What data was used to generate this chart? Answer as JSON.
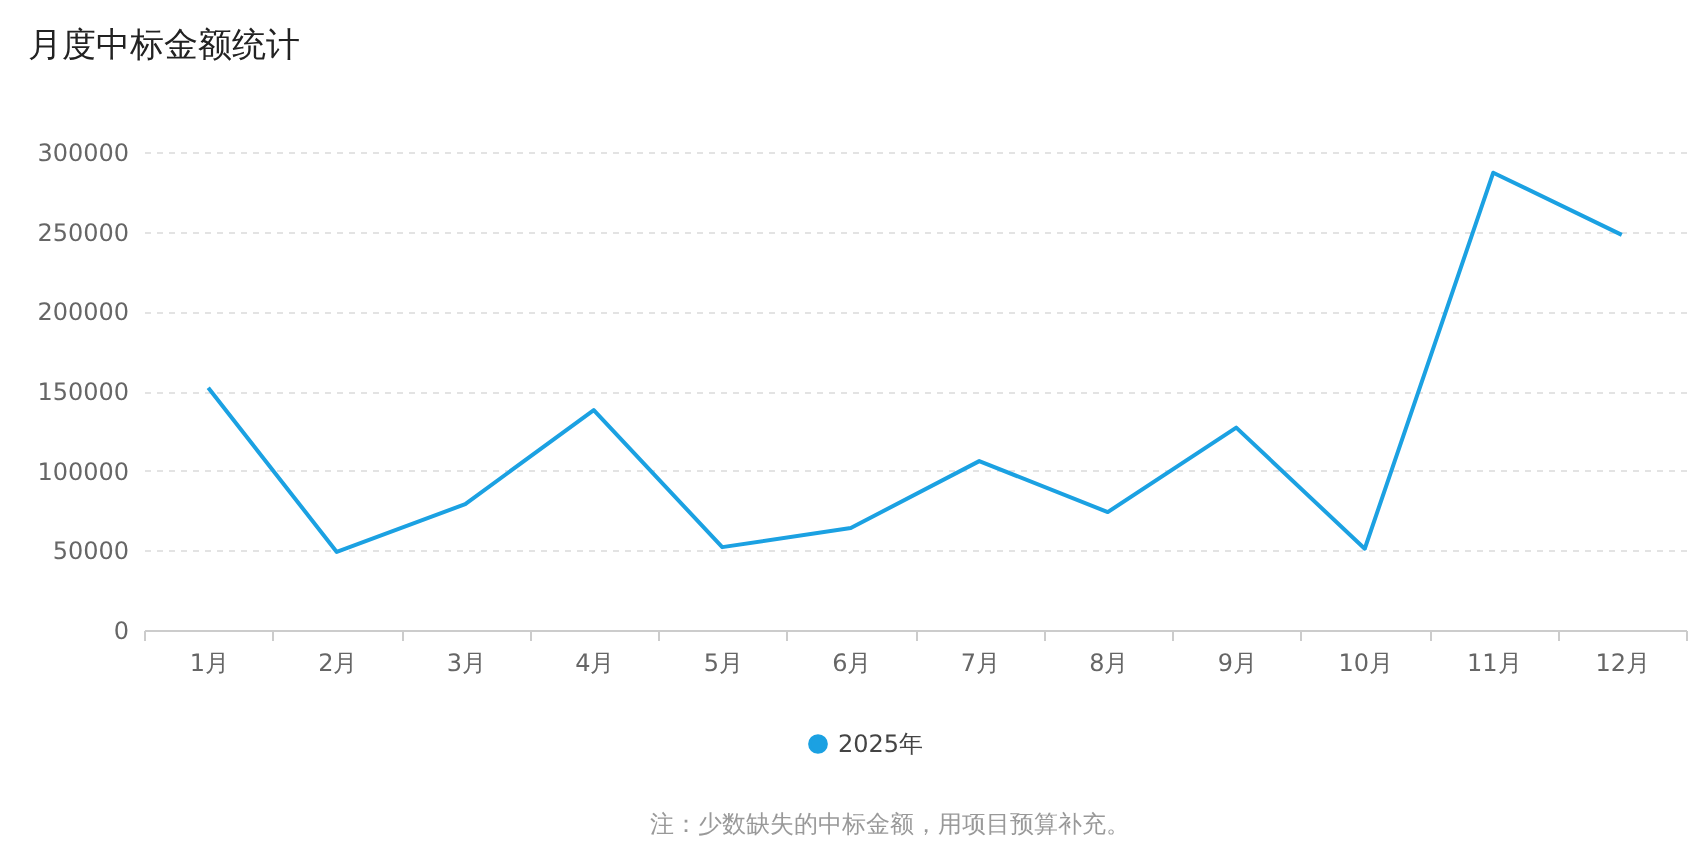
{
  "chart_data": {
    "type": "line",
    "title": "月度中标金额统计",
    "categories": [
      "1月",
      "2月",
      "3月",
      "4月",
      "5月",
      "6月",
      "7月",
      "8月",
      "9月",
      "10月",
      "11月",
      "12月"
    ],
    "series": [
      {
        "name": "2025年",
        "color": "#1ba1e2",
        "values": [
          152000,
          49000,
          79000,
          138000,
          52000,
          64000,
          106000,
          74000,
          127000,
          51000,
          287000,
          248000
        ]
      }
    ],
    "ylim": [
      0,
      300000
    ],
    "yticks": [
      0,
      50000,
      100000,
      150000,
      200000,
      250000,
      300000
    ],
    "grid": "y",
    "legend": "bottom",
    "marker": "none",
    "line_style": "solid",
    "annotations": [
      "注：少数缺失的中标金额，用项目预算补充。"
    ]
  }
}
